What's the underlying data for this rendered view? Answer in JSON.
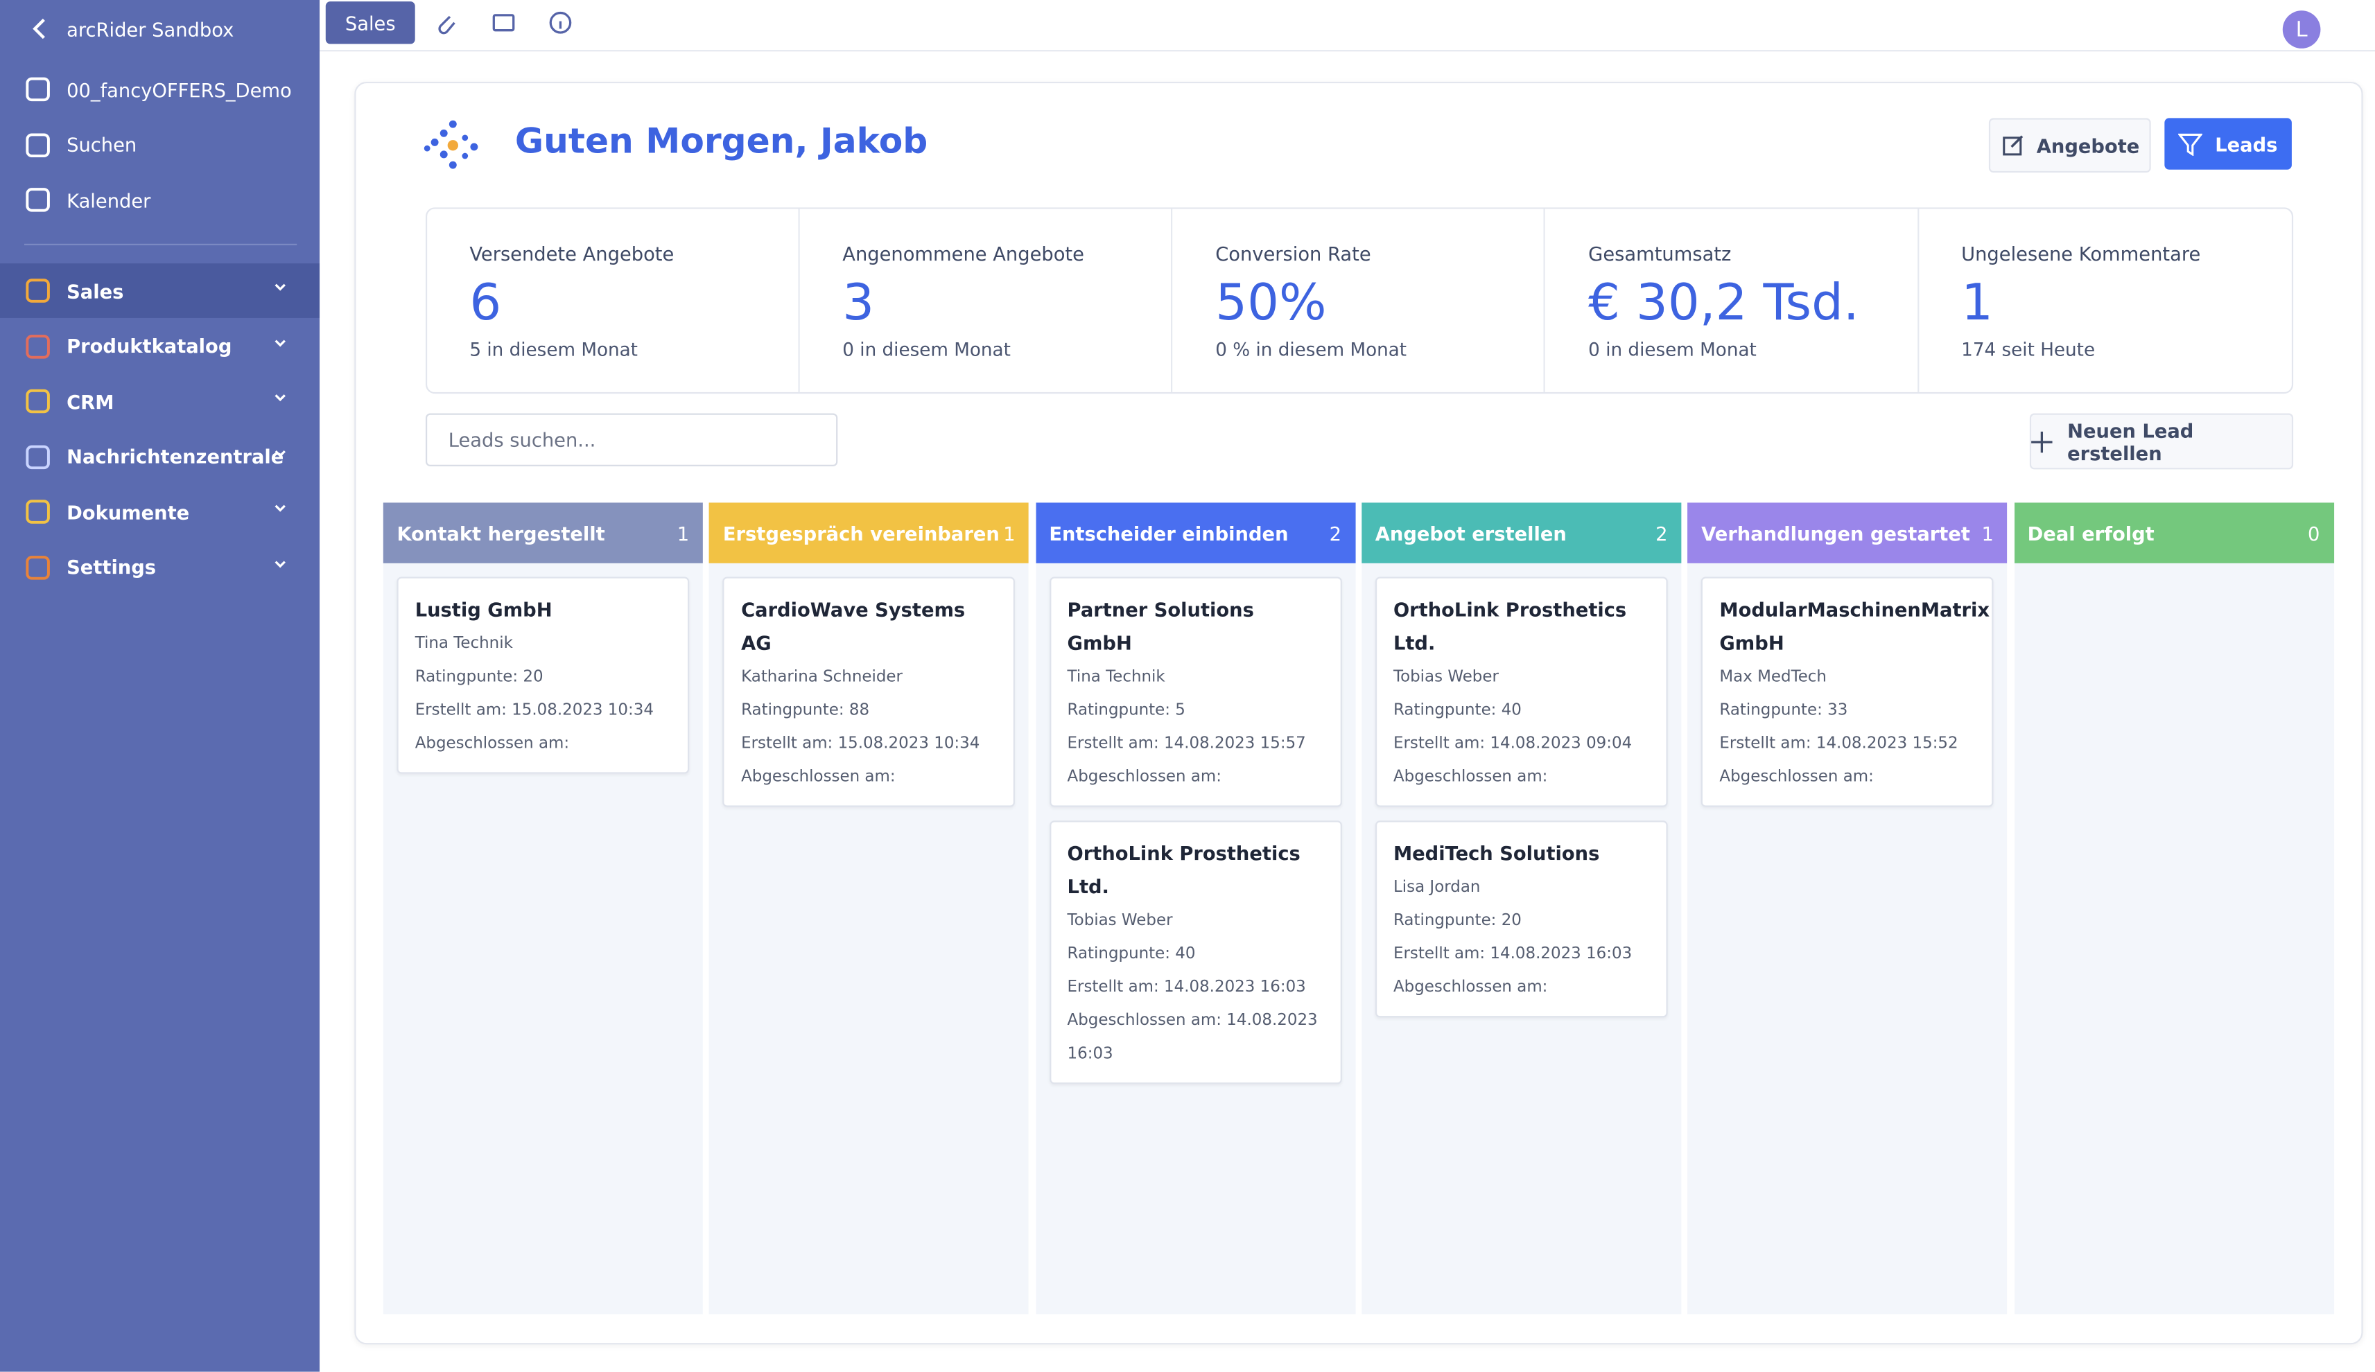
{
  "sidebar": {
    "back": "arcRider Sandbox",
    "items": [
      "00_fancyOFFERS_Demo",
      "Suchen",
      "Kalender"
    ],
    "menu": [
      "Sales",
      "Produktkatalog",
      "CRM",
      "Nachrichtenzentrale",
      "Dokumente",
      "Settings"
    ]
  },
  "topbar": {
    "tab": "Sales",
    "avatar": "L"
  },
  "header": {
    "greeting": "Guten Morgen, Jakob",
    "buttons": [
      "Angebote",
      "Leads"
    ]
  },
  "stats": [
    {
      "label": "Versendete Angebote",
      "value": "6",
      "sub": "5 in diesem Monat"
    },
    {
      "label": "Angenommene Angebote",
      "value": "3",
      "sub": "0 in diesem Monat"
    },
    {
      "label": "Conversion Rate",
      "value": "50%",
      "sub": "0 % in diesem Monat"
    },
    {
      "label": "Gesamtumsatz",
      "value": "€ 30,2 Tsd.",
      "sub": "0 in diesem Monat"
    },
    {
      "label": "Ungelesene Kommentare",
      "value": "1",
      "sub": "174 seit Heute"
    }
  ],
  "search_placeholder": "Leads suchen...",
  "new_lead": "Neuen Lead erstellen",
  "columns": [
    {
      "title": "Kontakt hergestellt",
      "count": 1,
      "color": "#8592bd",
      "cards": [
        {
          "title": "Lustig GmbH",
          "person": "Tina Technik",
          "rating": "Ratingpunte: 20",
          "created": "Erstellt am: 15.08.2023 10:34",
          "closed": "Abgeschlossen am:"
        }
      ]
    },
    {
      "title": "Erstgespräch vereinbaren",
      "count": 1,
      "color": "#f2c244",
      "cards": [
        {
          "title": "CardioWave Systems AG",
          "person": "Katharina Schneider",
          "rating": "Ratingpunte: 88",
          "created": "Erstellt am: 15.08.2023 10:34",
          "closed": "Abgeschlossen am:"
        }
      ]
    },
    {
      "title": "Entscheider einbinden",
      "count": 2,
      "color": "#4a6ff0",
      "cards": [
        {
          "title": "Partner Solutions GmbH",
          "person": "Tina Technik",
          "rating": "Ratingpunte: 5",
          "created": "Erstellt am: 14.08.2023 15:57",
          "closed": "Abgeschlossen am:"
        },
        {
          "title": "OrthoLink Prosthetics Ltd.",
          "person": "Tobias Weber",
          "rating": "Ratingpunte: 40",
          "created": "Erstellt am: 14.08.2023 16:03",
          "closed": "Abgeschlossen am: 14.08.2023 16:03"
        }
      ]
    },
    {
      "title": "Angebot erstellen",
      "count": 2,
      "color": "#4bbcb5",
      "cards": [
        {
          "title": "OrthoLink Prosthetics Ltd.",
          "person": "Tobias Weber",
          "rating": "Ratingpunte: 40",
          "created": "Erstellt am: 14.08.2023 09:04",
          "closed": "Abgeschlossen am:"
        },
        {
          "title": "MediTech Solutions",
          "person": "Lisa Jordan",
          "rating": "Ratingpunte: 20",
          "created": "Erstellt am: 14.08.2023 16:03",
          "closed": "Abgeschlossen am:"
        }
      ]
    },
    {
      "title": "Verhandlungen gestartet",
      "count": 1,
      "color": "#9a86ea",
      "cards": [
        {
          "title": "ModularMaschinenMatrix GmbH",
          "person": "Max MedTech",
          "rating": "Ratingpunte: 33",
          "created": "Erstellt am: 14.08.2023 15:52",
          "closed": "Abgeschlossen am:"
        }
      ]
    },
    {
      "title": "Deal erfolgt",
      "count": 0,
      "color": "#74c87d",
      "cards": []
    }
  ]
}
